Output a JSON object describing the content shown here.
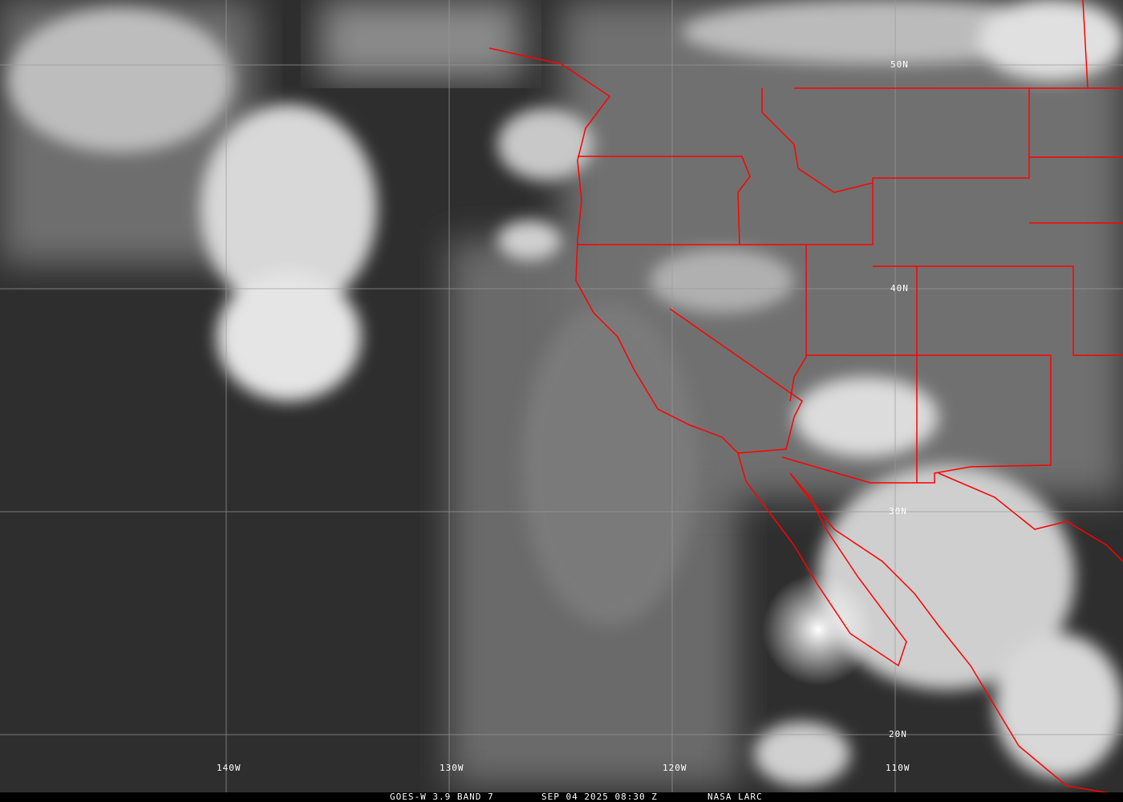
{
  "caption": {
    "satellite": "GOES-W 3.9 BAND 7",
    "datetime": "SEP 04 2025 08:30 Z",
    "source": "NASA LARC"
  },
  "lat_labels": [
    "50N",
    "40N",
    "30N",
    "20N"
  ],
  "lon_labels": [
    "140W",
    "130W",
    "120W",
    "110W"
  ],
  "colors": {
    "boundaries": "#ff0000",
    "grid": "#9a9a9a",
    "text": "#ffffff"
  }
}
